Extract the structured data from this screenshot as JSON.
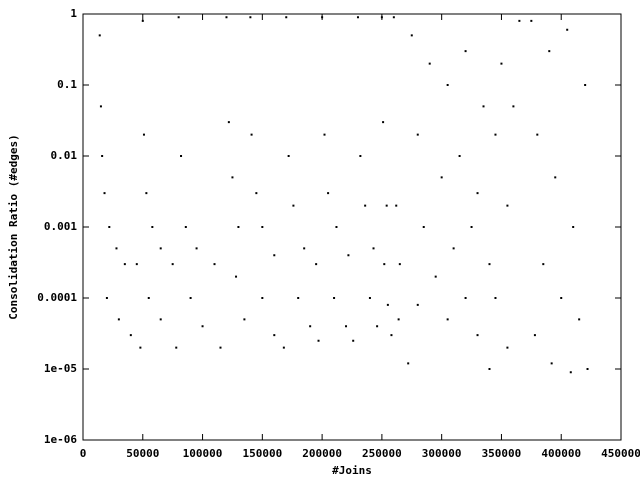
{
  "chart_data": {
    "type": "scatter",
    "xlabel": "#Joins",
    "ylabel": "Consolidation Ratio (#edges)",
    "color": "#000000",
    "ylog": true,
    "grid": false,
    "xlim": [
      0,
      450000
    ],
    "xticks": [
      0,
      50000,
      100000,
      150000,
      200000,
      250000,
      300000,
      350000,
      400000,
      450000
    ],
    "ylim": [
      1e-06,
      1
    ],
    "yticks": [
      {
        "value": 1e-06,
        "label": "1e-06"
      },
      {
        "value": 1e-05,
        "label": "1e-05"
      },
      0.0001,
      0.001,
      0.01,
      0.1,
      1
    ],
    "x": [
      14000,
      15000,
      16000,
      18000,
      22000,
      28000,
      35000,
      45000,
      20000,
      30000,
      40000,
      48000,
      50000,
      51000,
      53000,
      58000,
      65000,
      75000,
      55000,
      65000,
      78000,
      80000,
      82000,
      86000,
      95000,
      110000,
      90000,
      100000,
      115000,
      120000,
      122000,
      125000,
      130000,
      128000,
      135000,
      140000,
      141000,
      145000,
      150000,
      160000,
      150000,
      160000,
      168000,
      170000,
      172000,
      176000,
      185000,
      195000,
      180000,
      190000,
      197000,
      200000,
      202000,
      205000,
      212000,
      222000,
      210000,
      220000,
      226000,
      230000,
      232000,
      236000,
      243000,
      240000,
      246000,
      250000,
      251000,
      254000,
      252000,
      255000,
      258000,
      260000,
      262000,
      265000,
      264000,
      275000,
      290000,
      305000,
      320000,
      335000,
      350000,
      365000,
      280000,
      300000,
      315000,
      330000,
      345000,
      360000,
      285000,
      310000,
      325000,
      340000,
      355000,
      295000,
      320000,
      345000,
      280000,
      305000,
      330000,
      355000,
      272000,
      340000,
      375000,
      390000,
      405000,
      420000,
      380000,
      395000,
      410000,
      385000,
      400000,
      415000,
      378000,
      392000,
      408000,
      422000
    ],
    "values": [
      0.5,
      0.05,
      0.01,
      0.003,
      0.001,
      0.0005,
      0.0003,
      0.0003,
      0.0001,
      5e-05,
      3e-05,
      2e-05,
      0.8,
      0.02,
      0.003,
      0.001,
      0.0005,
      0.0003,
      0.0001,
      5e-05,
      2e-05,
      0.9,
      0.01,
      0.001,
      0.0005,
      0.0003,
      0.0001,
      4e-05,
      2e-05,
      0.9,
      0.03,
      0.005,
      0.001,
      0.0002,
      5e-05,
      0.9,
      0.02,
      0.003,
      0.001,
      0.0004,
      0.0001,
      3e-05,
      2e-05,
      0.9,
      0.01,
      0.002,
      0.0005,
      0.0003,
      0.0001,
      4e-05,
      2.5e-05,
      0.9,
      0.02,
      0.003,
      0.001,
      0.0004,
      0.0001,
      4e-05,
      2.5e-05,
      0.9,
      0.01,
      0.002,
      0.0005,
      0.0001,
      4e-05,
      0.9,
      0.03,
      0.002,
      0.0003,
      8e-05,
      3e-05,
      0.9,
      0.002,
      0.0003,
      5e-05,
      0.5,
      0.2,
      0.1,
      0.3,
      0.05,
      0.2,
      0.8,
      0.02,
      0.005,
      0.01,
      0.003,
      0.02,
      0.05,
      0.001,
      0.0005,
      0.001,
      0.0003,
      0.002,
      0.0002,
      0.0001,
      0.0001,
      8e-05,
      5e-05,
      3e-05,
      2e-05,
      1.2e-05,
      1e-05,
      0.8,
      0.3,
      0.6,
      0.1,
      0.02,
      0.005,
      0.001,
      0.0003,
      0.0001,
      5e-05,
      3e-05,
      1.2e-05,
      9e-06,
      1e-05
    ]
  }
}
